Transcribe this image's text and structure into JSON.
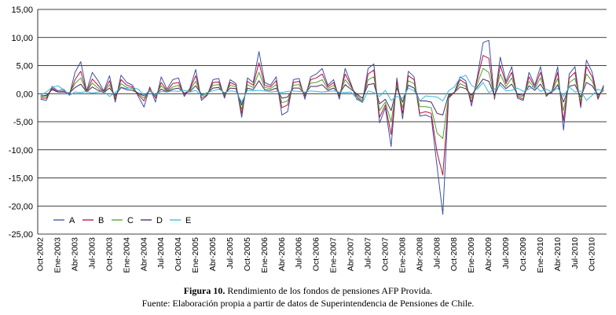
{
  "chart_data": {
    "type": "line",
    "title": "",
    "xlabel": "",
    "ylabel": "",
    "ylim": [
      -25,
      15
    ],
    "y_ticks": [
      "15,00",
      "10,00",
      "5,00",
      "0,00",
      "-5,00",
      "-10,00",
      "-15,00",
      "-20,00",
      "-25,00"
    ],
    "y_tick_values": [
      15,
      10,
      5,
      0,
      -5,
      -10,
      -15,
      -20,
      -25
    ],
    "grid": "horizontal",
    "legend_position": "bottom-left",
    "categories": [
      "Oct-2002",
      "Nov-2002",
      "Dic-2002",
      "Ene-2003",
      "Feb-2003",
      "Mar-2003",
      "Abr-2003",
      "May-2003",
      "Jun-2003",
      "Jul-2003",
      "Ago-2003",
      "Sep-2003",
      "Oct-2003",
      "Nov-2003",
      "Dic-2003",
      "Ene-2004",
      "Feb-2004",
      "Mar-2004",
      "Abr-2004",
      "May-2004",
      "Jun-2004",
      "Jul-2004",
      "Ago-2004",
      "Sep-2004",
      "Oct-2004",
      "Nov-2004",
      "Dic-2004",
      "Ene-2005",
      "Feb-2005",
      "Mar-2005",
      "Abr-2005",
      "May-2005",
      "Jun-2005",
      "Jul-2005",
      "Ago-2005",
      "Sep-2005",
      "Oct-2005",
      "Nov-2005",
      "Dic-2005",
      "Ene-2006",
      "Feb-2006",
      "Mar-2006",
      "Abr-2006",
      "May-2006",
      "Jun-2006",
      "Jul-2006",
      "Ago-2006",
      "Sep-2006",
      "Oct-2006",
      "Nov-2006",
      "Dic-2006",
      "Ene-2007",
      "Feb-2007",
      "Mar-2007",
      "Abr-2007",
      "May-2007",
      "Jun-2007",
      "Jul-2007",
      "Ago-2007",
      "Sep-2007",
      "Oct-2007",
      "Nov-2007",
      "Dic-2007",
      "Ene-2008",
      "Feb-2008",
      "Mar-2008",
      "Abr-2008",
      "May-2008",
      "Jun-2008",
      "Jul-2008",
      "Ago-2008",
      "Sep-2008",
      "Oct-2008",
      "Nov-2008",
      "Dic-2008",
      "Ene-2009",
      "Feb-2009",
      "Mar-2009",
      "Abr-2009",
      "May-2009",
      "Jun-2009",
      "Jul-2009",
      "Ago-2009",
      "Sep-2009",
      "Oct-2009",
      "Nov-2009",
      "Dic-2009",
      "Ene-2010",
      "Feb-2010",
      "Mar-2010",
      "Abr-2010",
      "May-2010",
      "Jun-2010",
      "Jul-2010",
      "Ago-2010",
      "Sep-2010",
      "Oct-2010",
      "Nov-2010",
      "Dic-2010"
    ],
    "x_tick_labels": [
      "Oct-2002",
      "Ene-2003",
      "Abr-2003",
      "Jul-2003",
      "Oct-2003",
      "Ene-2004",
      "Abr-2004",
      "Jul-2004",
      "Oct-2004",
      "Ene-2005",
      "Abr-2005",
      "Jul-2005",
      "Oct-2005",
      "Ene-2006",
      "Abr-2006",
      "Jul-2006",
      "Oct-2006",
      "Ene-2007",
      "Abr-2007",
      "Jul-2007",
      "Oct-2007",
      "Ene-2008",
      "Abr-2008",
      "Jul-2008",
      "Oct-2008",
      "Ene-2009",
      "Abr-2009",
      "Jul-2009",
      "Oct-2009",
      "Ene-2010",
      "Abr-2010",
      "Jul-2010",
      "Oct-2010"
    ],
    "series": [
      {
        "name": "A",
        "color": "#3f4fa0",
        "values": [
          -1.0,
          -1.2,
          1.3,
          0.5,
          0.8,
          -0.3,
          3.8,
          5.7,
          0.5,
          3.8,
          2.3,
          0.5,
          3.2,
          -1.5,
          3.3,
          2.0,
          1.5,
          -0.5,
          -2.4,
          1.2,
          -1.5,
          3.0,
          0.8,
          2.5,
          2.8,
          -0.5,
          1.0,
          4.3,
          -1.2,
          -0.3,
          2.5,
          2.7,
          -0.8,
          2.5,
          1.8,
          -4.2,
          2.8,
          2.0,
          7.5,
          2.0,
          1.5,
          3.0,
          -3.8,
          -3.2,
          2.5,
          2.7,
          -1.0,
          3.0,
          3.5,
          4.5,
          1.5,
          2.5,
          -1.0,
          4.5,
          1.8,
          -1.0,
          -1.5,
          4.5,
          5.3,
          -5.2,
          -2.5,
          -9.4,
          2.8,
          -4.5,
          4.0,
          3.0,
          -4.0,
          -3.8,
          -4.2,
          -13.0,
          -21.5,
          -0.8,
          0.2,
          3.0,
          2.3,
          -2.2,
          3.0,
          9.1,
          9.5,
          -1.0,
          6.5,
          2.2,
          4.8,
          -0.8,
          -1.2,
          3.8,
          1.5,
          4.8,
          -0.5,
          0.5,
          4.8,
          -6.5,
          3.5,
          4.8,
          -2.5,
          6.0,
          3.8,
          -1.0,
          1.5
        ]
      },
      {
        "name": "B",
        "color": "#b5123e",
        "values": [
          -0.8,
          -0.8,
          1.0,
          0.3,
          0.5,
          -0.2,
          2.5,
          4.0,
          0.3,
          2.6,
          1.5,
          0.3,
          2.3,
          -1.0,
          2.5,
          1.5,
          1.2,
          -0.2,
          -1.3,
          1.0,
          -0.8,
          2.0,
          0.5,
          1.8,
          2.0,
          -0.2,
          0.8,
          3.2,
          -0.8,
          -0.2,
          2.0,
          2.1,
          -0.5,
          2.0,
          1.5,
          -3.5,
          2.2,
          1.5,
          5.5,
          1.5,
          1.2,
          2.3,
          -2.5,
          -2.0,
          2.0,
          2.2,
          -0.5,
          2.5,
          2.8,
          3.5,
          1.2,
          2.0,
          -0.5,
          3.5,
          1.5,
          -0.5,
          -1.5,
          3.5,
          4.2,
          -4.2,
          -2.0,
          -7.3,
          2.2,
          -3.5,
          3.2,
          2.5,
          -3.5,
          -3.2,
          -3.5,
          -10.5,
          -14.5,
          -0.6,
          0.2,
          2.5,
          1.8,
          -1.5,
          2.5,
          6.8,
          6.3,
          -0.8,
          5.0,
          1.8,
          3.8,
          -0.5,
          -1.0,
          3.0,
          1.2,
          3.8,
          -0.3,
          0.4,
          3.8,
          -4.8,
          2.8,
          3.8,
          -2.0,
          4.8,
          3.0,
          -0.8,
          1.2
        ]
      },
      {
        "name": "C",
        "color": "#4aa42a",
        "values": [
          -0.6,
          -0.5,
          0.8,
          0.3,
          0.4,
          0.0,
          1.8,
          2.8,
          0.3,
          1.9,
          1.0,
          0.2,
          1.6,
          -0.6,
          1.8,
          1.1,
          0.9,
          0.0,
          -0.8,
          0.7,
          -0.4,
          1.4,
          0.4,
          1.2,
          1.5,
          0.0,
          0.6,
          2.2,
          -0.4,
          0.0,
          1.5,
          1.6,
          -0.2,
          1.5,
          1.2,
          -2.8,
          1.6,
          1.1,
          3.8,
          1.1,
          0.9,
          1.6,
          -1.6,
          -1.3,
          1.5,
          1.6,
          -0.2,
          1.9,
          2.0,
          2.5,
          0.9,
          1.5,
          -0.2,
          2.5,
          1.2,
          -0.2,
          -1.2,
          2.5,
          3.0,
          -3.0,
          -1.5,
          -5.0,
          1.5,
          -2.5,
          2.3,
          1.8,
          -2.3,
          -2.3,
          -2.5,
          -7.0,
          -8.0,
          -0.4,
          0.2,
          1.8,
          1.3,
          -0.8,
          1.8,
          4.5,
          3.8,
          -0.5,
          3.5,
          1.3,
          2.8,
          -0.3,
          -0.6,
          2.2,
          0.9,
          2.8,
          -0.2,
          0.3,
          2.7,
          -3.0,
          2.0,
          2.7,
          -1.3,
          3.5,
          2.2,
          -0.5,
          0.9
        ]
      },
      {
        "name": "D",
        "color": "#4b2468",
        "values": [
          -0.4,
          -0.3,
          0.7,
          0.3,
          0.3,
          0.1,
          1.1,
          1.7,
          0.3,
          1.2,
          0.6,
          0.2,
          1.0,
          -0.3,
          1.1,
          0.7,
          0.6,
          0.1,
          -0.4,
          0.5,
          -0.2,
          0.8,
          0.3,
          0.8,
          1.0,
          0.1,
          0.4,
          1.4,
          -0.1,
          0.1,
          1.0,
          1.1,
          0.0,
          1.0,
          0.9,
          -2.0,
          1.0,
          0.7,
          2.3,
          0.7,
          0.6,
          1.0,
          -0.8,
          -0.6,
          1.0,
          1.0,
          0.0,
          1.3,
          1.3,
          1.6,
          0.6,
          1.0,
          0.0,
          1.6,
          0.8,
          0.0,
          -0.8,
          1.6,
          1.8,
          -1.8,
          -1.0,
          -3.0,
          1.0,
          -1.5,
          1.5,
          1.0,
          -1.3,
          -1.3,
          -1.5,
          -3.5,
          -3.8,
          -0.2,
          0.2,
          1.2,
          0.9,
          -0.3,
          1.2,
          2.6,
          2.2,
          -0.3,
          2.0,
          0.9,
          1.7,
          -0.1,
          -0.3,
          1.4,
          0.6,
          1.7,
          0.0,
          0.2,
          1.6,
          -1.5,
          1.3,
          1.6,
          -0.6,
          2.0,
          1.4,
          -0.2,
          0.6
        ]
      },
      {
        "name": "E",
        "color": "#36b9df",
        "values": [
          -0.3,
          0.3,
          1.1,
          1.4,
          0.7,
          -0.3,
          0.3,
          0.2,
          0.4,
          0.1,
          0.3,
          0.4,
          -0.5,
          0.2,
          1.2,
          0.9,
          1.1,
          0.8,
          -0.3,
          0.6,
          -0.2,
          0.4,
          0.3,
          0.5,
          0.4,
          0.6,
          0.3,
          0.6,
          -0.3,
          0.2,
          0.5,
          0.8,
          0.2,
          0.5,
          0.4,
          -1.5,
          0.6,
          0.5,
          0.6,
          0.5,
          0.3,
          0.4,
          0.2,
          0.4,
          0.5,
          0.4,
          0.3,
          0.5,
          0.4,
          0.3,
          0.4,
          0.5,
          0.3,
          0.2,
          0.3,
          -0.8,
          -1.6,
          0.5,
          0.2,
          -0.5,
          0.6,
          -1.2,
          -0.5,
          -0.8,
          1.0,
          0.5,
          -1.3,
          -0.4,
          -0.5,
          -0.6,
          -1.3,
          0.5,
          1.2,
          2.8,
          3.3,
          1.5,
          0.8,
          2.0,
          0.2,
          0.8,
          1.5,
          0.5,
          0.6,
          1.0,
          0.4,
          0.8,
          1.5,
          0.4,
          0.8,
          0.3,
          1.0,
          -0.5,
          1.2,
          0.3,
          0.5,
          -1.2,
          -0.3,
          0.8,
          0.4
        ]
      }
    ]
  },
  "caption": {
    "figure_label": "Figura 10.",
    "figure_text": " Rendimiento de los fondos de pensiones AFP Provida.",
    "source": "Fuente: Elaboración propia a partir de datos de Superintendencia de Pensiones de Chile."
  }
}
